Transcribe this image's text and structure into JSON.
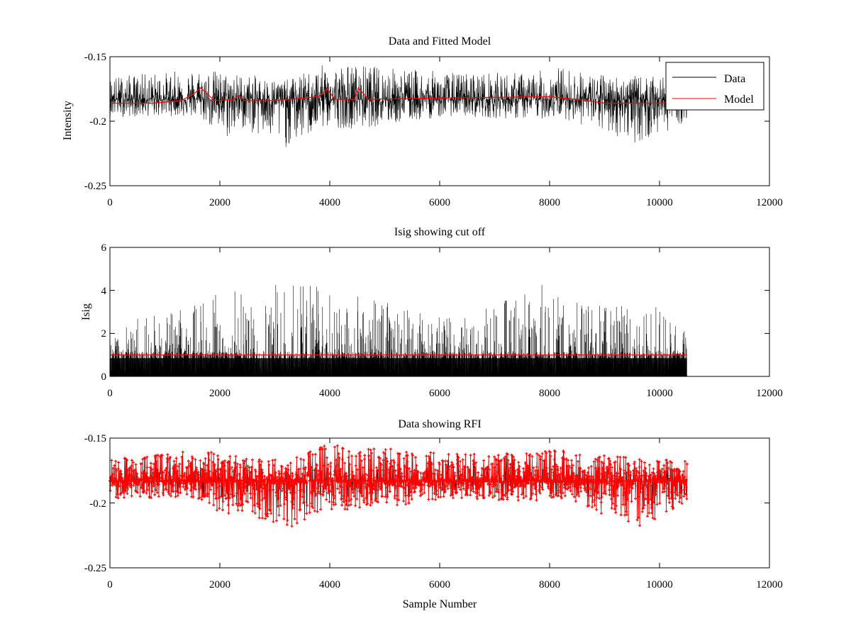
{
  "chart_data": [
    {
      "type": "line",
      "title": "Data and Fitted Model",
      "xlabel": "",
      "ylabel": "Intensity",
      "xlim": [
        0,
        12000
      ],
      "ylim": [
        -0.25,
        -0.15
      ],
      "ytick_labels": [
        "-0.15",
        "-0.2",
        "-0.25"
      ],
      "xtick_labels": [
        "0",
        "2000",
        "4000",
        "6000",
        "8000",
        "10000",
        "12000"
      ],
      "legend": {
        "placement": "top-right",
        "entries": [
          "Data",
          "Model"
        ]
      },
      "colors": {
        "data": "#000000",
        "model": "#ff0000"
      },
      "series": [
        {
          "name": "Data",
          "x_range": [
            0,
            10500
          ],
          "approx_center": -0.183,
          "envelope_keypoints": [
            {
              "x": 0,
              "max": -0.165,
              "min": -0.197
            },
            {
              "x": 1200,
              "max": -0.161,
              "min": -0.196
            },
            {
              "x": 1650,
              "max": -0.158,
              "min": -0.198
            },
            {
              "x": 2100,
              "max": -0.162,
              "min": -0.215
            },
            {
              "x": 2400,
              "max": -0.163,
              "min": -0.206
            },
            {
              "x": 3200,
              "max": -0.168,
              "min": -0.221
            },
            {
              "x": 3950,
              "max": -0.155,
              "min": -0.205
            },
            {
              "x": 4550,
              "max": -0.156,
              "min": -0.206
            },
            {
              "x": 6200,
              "max": -0.162,
              "min": -0.196
            },
            {
              "x": 7700,
              "max": -0.162,
              "min": -0.199
            },
            {
              "x": 8200,
              "max": -0.157,
              "min": -0.197
            },
            {
              "x": 8700,
              "max": -0.163,
              "min": -0.205
            },
            {
              "x": 9650,
              "max": -0.165,
              "min": -0.218
            },
            {
              "x": 10500,
              "max": -0.167,
              "min": -0.2
            }
          ]
        },
        {
          "name": "Model",
          "x": [
            0,
            800,
            1300,
            1550,
            1650,
            1750,
            1900,
            2250,
            2350,
            2450,
            3000,
            3800,
            3950,
            4100,
            4450,
            4520,
            4580,
            4700,
            6000,
            8000,
            8500,
            9000,
            9500,
            10000,
            10500
          ],
          "y": [
            -0.186,
            -0.186,
            -0.184,
            -0.178,
            -0.174,
            -0.178,
            -0.184,
            -0.183,
            -0.18,
            -0.184,
            -0.184,
            -0.181,
            -0.175,
            -0.183,
            -0.183,
            -0.174,
            -0.177,
            -0.183,
            -0.182,
            -0.181,
            -0.183,
            -0.186,
            -0.186,
            -0.186,
            -0.184
          ]
        }
      ]
    },
    {
      "type": "line",
      "title": "Isig showing cut off",
      "xlabel": "",
      "ylabel": "Isig",
      "xlim": [
        0,
        12000
      ],
      "ylim": [
        0,
        6
      ],
      "ytick_labels": [
        "0",
        "2",
        "4",
        "6"
      ],
      "xtick_labels": [
        "0",
        "2000",
        "4000",
        "6000",
        "8000",
        "10000",
        "12000"
      ],
      "colors": {
        "data": "#000000",
        "cutoff": "#ff0000"
      },
      "series": [
        {
          "name": "Isig",
          "x_range": [
            0,
            10500
          ],
          "envelope_keypoints": [
            {
              "x": 0,
              "max": 1.5
            },
            {
              "x": 300,
              "max": 2.7
            },
            {
              "x": 1150,
              "max": 3.0
            },
            {
              "x": 1900,
              "max": 3.8
            },
            {
              "x": 2100,
              "max": 4.0
            },
            {
              "x": 2450,
              "max": 4.0
            },
            {
              "x": 3200,
              "max": 4.6
            },
            {
              "x": 3950,
              "max": 4.1
            },
            {
              "x": 4500,
              "max": 3.8
            },
            {
              "x": 6200,
              "max": 2.7
            },
            {
              "x": 7700,
              "max": 4.0
            },
            {
              "x": 7850,
              "max": 4.5
            },
            {
              "x": 8300,
              "max": 3.7
            },
            {
              "x": 9650,
              "max": 4.1
            },
            {
              "x": 10500,
              "max": 2.0
            }
          ]
        },
        {
          "name": "cut off",
          "x": [
            0,
            10500
          ],
          "y": [
            1.0,
            1.0
          ]
        }
      ]
    },
    {
      "type": "line",
      "title": "Data showing RFI",
      "xlabel": "Sample Number",
      "ylabel": "",
      "xlim": [
        0,
        12000
      ],
      "ylim": [
        -0.25,
        -0.15
      ],
      "ytick_labels": [
        "-0.15",
        "-0.2",
        "-0.25"
      ],
      "xtick_labels": [
        "0",
        "2000",
        "4000",
        "6000",
        "8000",
        "10000",
        "12000"
      ],
      "colors": {
        "data": "#000000",
        "rfi": "#ff0000"
      },
      "series": [
        {
          "name": "Data",
          "x_range": [
            0,
            10500
          ],
          "approx_center": -0.183,
          "envelope_keypoints": [
            {
              "x": 0,
              "max": -0.165,
              "min": -0.197
            },
            {
              "x": 1200,
              "max": -0.161,
              "min": -0.196
            },
            {
              "x": 1650,
              "max": -0.158,
              "min": -0.198
            },
            {
              "x": 2100,
              "max": -0.162,
              "min": -0.215
            },
            {
              "x": 2400,
              "max": -0.163,
              "min": -0.206
            },
            {
              "x": 3200,
              "max": -0.168,
              "min": -0.221
            },
            {
              "x": 3950,
              "max": -0.155,
              "min": -0.205
            },
            {
              "x": 4550,
              "max": -0.156,
              "min": -0.206
            },
            {
              "x": 6200,
              "max": -0.162,
              "min": -0.196
            },
            {
              "x": 7700,
              "max": -0.162,
              "min": -0.199
            },
            {
              "x": 8200,
              "max": -0.157,
              "min": -0.197
            },
            {
              "x": 8700,
              "max": -0.163,
              "min": -0.205
            },
            {
              "x": 9650,
              "max": -0.165,
              "min": -0.218
            },
            {
              "x": 10500,
              "max": -0.167,
              "min": -0.2
            }
          ]
        }
      ]
    }
  ]
}
